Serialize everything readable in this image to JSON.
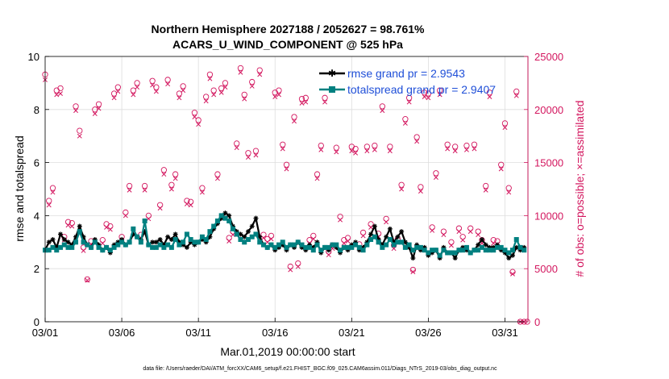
{
  "chart_data": {
    "type": "line",
    "title": "Northern Hemisphere 2027188 / 2052627 = 98.761%",
    "subtitle": "ACARS_U_WIND_COMPONENT @ 525 hPa",
    "xlabel": "Mar.01,2019 00:00:00 start",
    "ylabel": "rmse and totalspread",
    "y2label": "# of obs: o=possible; ×=assimilated",
    "footnote": "data file: /Users/raeder/DAI/ATM_forcXX/CAM6_setup/f.e21.FHIST_BGC.f09_025.CAM6assim.011/Diags_NTrS_2019-03/obs_diag_output.nc",
    "xlim": [
      0,
      31.5
    ],
    "ylim": [
      0,
      10
    ],
    "y2lim": [
      0,
      25000
    ],
    "xticks": [
      0,
      5,
      10,
      15,
      20,
      25,
      30
    ],
    "xtick_labels": [
      "03/01",
      "03/06",
      "03/11",
      "03/16",
      "03/21",
      "03/26",
      "03/31"
    ],
    "yticks": [
      0,
      2,
      4,
      6,
      8,
      10
    ],
    "ytick_labels": [
      "0",
      "2",
      "4",
      "6",
      "8",
      "10"
    ],
    "y2ticks": [
      0,
      5000,
      10000,
      15000,
      20000,
      25000
    ],
    "y2tick_labels": [
      "0",
      "5000",
      "10000",
      "15000",
      "20000",
      "25000"
    ],
    "grid": true,
    "legend_position": "top-right",
    "series": [
      {
        "name": "rmse",
        "legend": "rmse grand pr = 2.9543",
        "color": "#000000",
        "marker": "asterisk",
        "x": [
          0.0,
          0.25,
          0.5,
          0.75,
          1.0,
          1.25,
          1.5,
          1.75,
          2.0,
          2.25,
          2.5,
          2.75,
          3.0,
          3.25,
          3.5,
          3.75,
          4.0,
          4.25,
          4.5,
          4.75,
          5.0,
          5.25,
          5.5,
          5.75,
          6.0,
          6.25,
          6.5,
          6.75,
          7.0,
          7.25,
          7.5,
          7.75,
          8.0,
          8.25,
          8.5,
          8.75,
          9.0,
          9.25,
          9.5,
          9.75,
          10.0,
          10.25,
          10.5,
          10.75,
          11.0,
          11.25,
          11.5,
          11.75,
          12.0,
          12.25,
          12.5,
          12.75,
          13.0,
          13.25,
          13.5,
          13.75,
          14.0,
          14.25,
          14.5,
          14.75,
          15.0,
          15.25,
          15.5,
          15.75,
          16.0,
          16.25,
          16.5,
          16.75,
          17.0,
          17.25,
          17.5,
          17.75,
          18.0,
          18.25,
          18.5,
          18.75,
          19.0,
          19.25,
          19.5,
          19.75,
          20.0,
          20.25,
          20.5,
          20.75,
          21.0,
          21.25,
          21.5,
          21.75,
          22.0,
          22.25,
          22.5,
          22.75,
          23.0,
          23.25,
          23.5,
          23.75,
          24.0,
          24.25,
          24.5,
          24.75,
          25.0,
          25.25,
          25.5,
          25.75,
          26.0,
          26.25,
          26.5,
          26.75,
          27.0,
          27.25,
          27.5,
          27.75,
          28.0,
          28.25,
          28.5,
          28.75,
          29.0,
          29.25,
          29.5,
          29.75,
          30.0,
          30.25,
          30.5,
          30.75,
          31.0,
          31.25
        ],
        "y": [
          2.7,
          3.0,
          3.1,
          2.8,
          3.3,
          3.1,
          3.0,
          2.9,
          3.2,
          3.6,
          3.2,
          2.9,
          2.8,
          3.1,
          2.9,
          2.7,
          2.8,
          2.6,
          2.9,
          3.0,
          3.1,
          2.9,
          3.0,
          3.3,
          3.2,
          3.1,
          3.4,
          2.9,
          3.0,
          3.0,
          3.1,
          2.9,
          3.2,
          3.1,
          3.3,
          3.0,
          2.9,
          2.8,
          3.0,
          2.9,
          3.0,
          3.1,
          3.0,
          3.2,
          3.5,
          3.7,
          3.9,
          4.1,
          4.0,
          3.6,
          3.4,
          3.3,
          3.2,
          3.4,
          3.6,
          3.9,
          3.2,
          2.9,
          2.8,
          2.9,
          2.7,
          2.8,
          2.9,
          2.7,
          2.9,
          2.8,
          3.0,
          2.8,
          2.7,
          2.9,
          2.8,
          3.0,
          2.6,
          2.8,
          2.7,
          2.9,
          2.8,
          2.6,
          2.8,
          2.7,
          2.9,
          3.0,
          2.7,
          2.8,
          3.0,
          3.3,
          3.6,
          3.1,
          2.9,
          3.2,
          3.5,
          3.0,
          3.2,
          3.4,
          3.0,
          2.8,
          2.4,
          2.9,
          2.7,
          2.8,
          2.5,
          2.6,
          2.7,
          2.4,
          2.8,
          2.6,
          2.6,
          2.4,
          2.7,
          2.8,
          2.7,
          2.6,
          2.7,
          2.9,
          3.1,
          2.9,
          2.8,
          2.8,
          2.9,
          2.7,
          2.6,
          2.4,
          2.5,
          2.8,
          2.7,
          2.8
        ]
      },
      {
        "name": "totalspread",
        "legend": "totalspread grand pr = 2.9407",
        "color": "#008080",
        "marker": "square",
        "x": [
          0.0,
          0.25,
          0.5,
          0.75,
          1.0,
          1.25,
          1.5,
          1.75,
          2.0,
          2.25,
          2.5,
          2.75,
          3.0,
          3.25,
          3.5,
          3.75,
          4.0,
          4.25,
          4.5,
          4.75,
          5.0,
          5.25,
          5.5,
          5.75,
          6.0,
          6.25,
          6.5,
          6.75,
          7.0,
          7.25,
          7.5,
          7.75,
          8.0,
          8.25,
          8.5,
          8.75,
          9.0,
          9.25,
          9.5,
          9.75,
          10.0,
          10.25,
          10.5,
          10.75,
          11.0,
          11.25,
          11.5,
          11.75,
          12.0,
          12.25,
          12.5,
          12.75,
          13.0,
          13.25,
          13.5,
          13.75,
          14.0,
          14.25,
          14.5,
          14.75,
          15.0,
          15.25,
          15.5,
          15.75,
          16.0,
          16.25,
          16.5,
          16.75,
          17.0,
          17.25,
          17.5,
          17.75,
          18.0,
          18.25,
          18.5,
          18.75,
          19.0,
          19.25,
          19.5,
          19.75,
          20.0,
          20.25,
          20.5,
          20.75,
          21.0,
          21.25,
          21.5,
          21.75,
          22.0,
          22.25,
          22.5,
          22.75,
          23.0,
          23.25,
          23.5,
          23.75,
          24.0,
          24.25,
          24.5,
          24.75,
          25.0,
          25.25,
          25.5,
          25.75,
          26.0,
          26.25,
          26.5,
          26.75,
          27.0,
          27.25,
          27.5,
          27.75,
          28.0,
          28.25,
          28.5,
          28.75,
          29.0,
          29.25,
          29.5,
          29.75,
          30.0,
          30.25,
          30.5,
          30.75,
          31.0,
          31.25
        ],
        "y": [
          2.7,
          2.7,
          2.8,
          2.7,
          2.8,
          2.9,
          2.8,
          2.8,
          3.0,
          3.4,
          3.0,
          2.9,
          2.8,
          3.0,
          2.8,
          2.7,
          2.8,
          2.7,
          2.8,
          2.9,
          3.0,
          2.9,
          3.0,
          3.5,
          3.2,
          3.0,
          3.8,
          2.9,
          2.8,
          2.8,
          2.9,
          2.8,
          2.9,
          2.8,
          3.1,
          2.9,
          3.0,
          3.3,
          3.1,
          3.0,
          3.0,
          3.2,
          3.1,
          3.4,
          3.6,
          3.8,
          4.0,
          3.9,
          3.8,
          3.5,
          3.3,
          3.1,
          3.0,
          3.1,
          3.2,
          3.3,
          3.0,
          2.9,
          2.8,
          2.9,
          2.8,
          2.9,
          3.0,
          2.8,
          2.9,
          2.9,
          3.0,
          2.9,
          2.8,
          2.8,
          2.7,
          2.9,
          2.7,
          2.8,
          2.8,
          2.9,
          2.9,
          2.7,
          2.8,
          2.8,
          2.8,
          2.9,
          2.8,
          2.7,
          2.9,
          3.1,
          3.2,
          3.0,
          2.8,
          2.9,
          3.1,
          2.9,
          3.0,
          3.0,
          2.8,
          2.9,
          2.7,
          2.8,
          2.8,
          2.7,
          2.6,
          2.7,
          2.7,
          2.5,
          2.7,
          2.6,
          2.6,
          2.6,
          2.7,
          2.7,
          2.8,
          2.6,
          2.7,
          2.7,
          2.8,
          2.7,
          2.7,
          2.7,
          2.8,
          2.8,
          2.7,
          2.6,
          2.7,
          3.1,
          2.8,
          2.7
        ]
      },
      {
        "name": "obs_possible",
        "color": "#d3175f",
        "marker": "circle",
        "x": [
          0.0,
          0.25,
          0.5,
          0.75,
          1.0,
          1.25,
          1.5,
          1.75,
          2.0,
          2.25,
          2.5,
          2.75,
          3.0,
          3.25,
          3.5,
          3.75,
          4.0,
          4.25,
          4.5,
          4.75,
          5.0,
          5.25,
          5.5,
          5.75,
          6.0,
          6.25,
          6.5,
          6.75,
          7.0,
          7.25,
          7.5,
          7.75,
          8.0,
          8.25,
          8.5,
          8.75,
          9.0,
          9.25,
          9.5,
          9.75,
          10.0,
          10.25,
          10.5,
          10.75,
          11.0,
          11.25,
          11.5,
          11.75,
          12.0,
          12.25,
          12.5,
          12.75,
          13.0,
          13.25,
          13.5,
          13.75,
          14.0,
          14.25,
          14.5,
          14.75,
          15.0,
          15.25,
          15.5,
          15.75,
          16.0,
          16.25,
          16.5,
          16.75,
          17.0,
          17.25,
          17.5,
          17.75,
          18.0,
          18.25,
          18.5,
          18.75,
          19.0,
          19.25,
          19.5,
          19.75,
          20.0,
          20.25,
          20.5,
          20.75,
          21.0,
          21.25,
          21.5,
          21.75,
          22.0,
          22.25,
          22.5,
          22.75,
          23.0,
          23.25,
          23.5,
          23.75,
          24.0,
          24.25,
          24.5,
          24.75,
          25.0,
          25.25,
          25.5,
          25.75,
          26.0,
          26.25,
          26.5,
          26.75,
          27.0,
          27.25,
          27.5,
          27.75,
          28.0,
          28.25,
          28.5,
          28.75,
          29.0,
          29.25,
          29.5,
          29.75,
          30.0,
          30.25,
          30.5,
          30.75,
          31.0,
          31.25
        ],
        "y": [
          23300,
          11400,
          12600,
          21800,
          22000,
          8000,
          9400,
          9300,
          20300,
          18000,
          7000,
          4000,
          7600,
          20000,
          20500,
          7700,
          9200,
          9000,
          21500,
          22100,
          8000,
          10300,
          12800,
          21800,
          22500,
          8200,
          12800,
          10000,
          22700,
          22100,
          11000,
          14300,
          22800,
          12900,
          13900,
          21500,
          22200,
          11400,
          11300,
          19700,
          19000,
          12600,
          21200,
          23300,
          21800,
          13900,
          22000,
          22500,
          7900,
          8500,
          16800,
          23900,
          21400,
          15900,
          22600,
          16100,
          23700,
          8200,
          7800,
          8100,
          21600,
          21800,
          16700,
          14800,
          5200,
          19300,
          5500,
          21000,
          21100,
          7700,
          8100,
          13900,
          16600,
          21100,
          6600,
          7200,
          16400,
          9900,
          7700,
          7900,
          16500,
          16300,
          7300,
          8400,
          16500,
          9200,
          16600,
          8300,
          20300,
          9700,
          16500,
          7200,
          7800,
          12900,
          19100,
          21100,
          4900,
          17400,
          12700,
          21600,
          21500,
          8900,
          14000,
          21800,
          8500,
          16700,
          7500,
          16500,
          8800,
          8000,
          16600,
          8800,
          16700,
          8500,
          7700,
          12800,
          21600,
          7700,
          7600,
          14800,
          18700,
          12600,
          4700,
          21700,
          0,
          0
        ],
        "valid": 126
      },
      {
        "name": "obs_assimilated",
        "color": "#d3175f",
        "marker": "times",
        "x": [
          0.0,
          0.25,
          0.5,
          0.75,
          1.0,
          1.25,
          1.5,
          1.75,
          2.0,
          2.25,
          2.5,
          2.75,
          3.0,
          3.25,
          3.5,
          3.75,
          4.0,
          4.25,
          4.5,
          4.75,
          5.0,
          5.25,
          5.5,
          5.75,
          6.0,
          6.25,
          6.5,
          6.75,
          7.0,
          7.25,
          7.5,
          7.75,
          8.0,
          8.25,
          8.5,
          8.75,
          9.0,
          9.25,
          9.5,
          9.75,
          10.0,
          10.25,
          10.5,
          10.75,
          11.0,
          11.25,
          11.5,
          11.75,
          12.0,
          12.25,
          12.5,
          12.75,
          13.0,
          13.25,
          13.5,
          13.75,
          14.0,
          14.25,
          14.5,
          14.75,
          15.0,
          15.25,
          15.5,
          15.75,
          16.0,
          16.25,
          16.5,
          16.75,
          17.0,
          17.25,
          17.5,
          17.75,
          18.0,
          18.25,
          18.5,
          18.75,
          19.0,
          19.25,
          19.5,
          19.75,
          20.0,
          20.25,
          20.5,
          20.75,
          21.0,
          21.25,
          21.5,
          21.75,
          22.0,
          22.25,
          22.5,
          22.75,
          23.0,
          23.25,
          23.5,
          23.75,
          24.0,
          24.25,
          24.5,
          24.75,
          25.0,
          25.25,
          25.5,
          25.75,
          26.0,
          26.25,
          26.5,
          26.75,
          27.0,
          27.25,
          27.5,
          27.75,
          28.0,
          28.25,
          28.5,
          28.75,
          29.0,
          29.25,
          29.5,
          29.75,
          30.0,
          30.25,
          30.5,
          30.75,
          31.0,
          31.25
        ],
        "y": [
          22800,
          11000,
          12200,
          21400,
          21500,
          7700,
          9100,
          9000,
          19900,
          17500,
          6700,
          3900,
          7300,
          19600,
          20100,
          7400,
          8900,
          8700,
          21100,
          21700,
          7700,
          10000,
          12400,
          21400,
          22100,
          7900,
          12400,
          9700,
          22300,
          21700,
          10700,
          13900,
          22400,
          12500,
          13500,
          21100,
          21800,
          11100,
          11000,
          19300,
          18600,
          12200,
          20800,
          22900,
          21400,
          13500,
          21600,
          22100,
          7600,
          8200,
          16400,
          23500,
          21000,
          15500,
          22200,
          15700,
          23300,
          7900,
          7500,
          7800,
          21200,
          21400,
          16300,
          14400,
          4900,
          18900,
          5200,
          20600,
          20700,
          7400,
          7800,
          13500,
          16200,
          20700,
          6300,
          6900,
          16000,
          9600,
          7400,
          7600,
          16100,
          15900,
          7000,
          8100,
          16100,
          8900,
          16200,
          8000,
          19900,
          9400,
          16100,
          6900,
          7500,
          12500,
          18700,
          20700,
          4700,
          17000,
          12300,
          21200,
          21100,
          8600,
          13600,
          21400,
          8200,
          16300,
          7200,
          16100,
          8500,
          7700,
          16200,
          8500,
          16300,
          8200,
          7400,
          12400,
          21200,
          7400,
          7300,
          14400,
          18300,
          12200,
          4500,
          21300,
          0,
          0
        ],
        "valid": 126
      }
    ]
  }
}
